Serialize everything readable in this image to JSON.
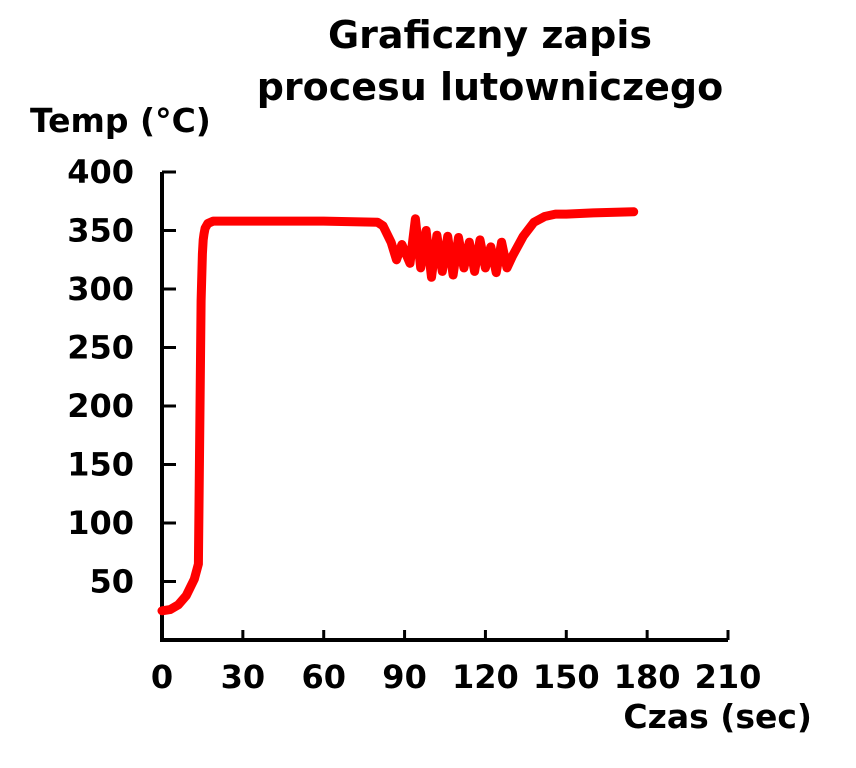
{
  "chart_data": {
    "type": "line",
    "title_lines": [
      "Graficzny zapis",
      "procesu lutowniczego"
    ],
    "xlabel": "Czas (sec)",
    "ylabel": "Temp (°C)",
    "xlim": [
      0,
      210
    ],
    "ylim": [
      0,
      400
    ],
    "x_ticks": [
      0,
      30,
      60,
      90,
      120,
      150,
      180,
      210
    ],
    "y_ticks": [
      50,
      100,
      150,
      200,
      250,
      300,
      350,
      400
    ],
    "grid": false,
    "legend": "none",
    "series": [
      {
        "color": "#ff0000",
        "x": [
          0,
          3,
          6,
          9,
          12,
          13.5,
          14.5,
          15,
          15.3,
          15.6,
          16,
          17,
          19,
          22,
          30,
          60,
          80,
          82,
          85,
          87,
          89,
          92,
          94,
          96,
          98,
          100,
          102,
          104,
          106,
          108,
          110,
          112,
          114,
          116,
          118,
          120,
          122,
          124,
          126,
          128,
          130,
          134,
          138,
          142,
          146,
          150,
          160,
          175
        ],
        "y": [
          25,
          26,
          30,
          38,
          52,
          65,
          290,
          330,
          342,
          347,
          352,
          356,
          358,
          358,
          358,
          358,
          357,
          354,
          340,
          325,
          338,
          322,
          360,
          318,
          350,
          310,
          346,
          315,
          345,
          312,
          344,
          318,
          340,
          315,
          342,
          318,
          336,
          314,
          340,
          318,
          328,
          345,
          357,
          362,
          364,
          364,
          365,
          366
        ]
      }
    ]
  }
}
